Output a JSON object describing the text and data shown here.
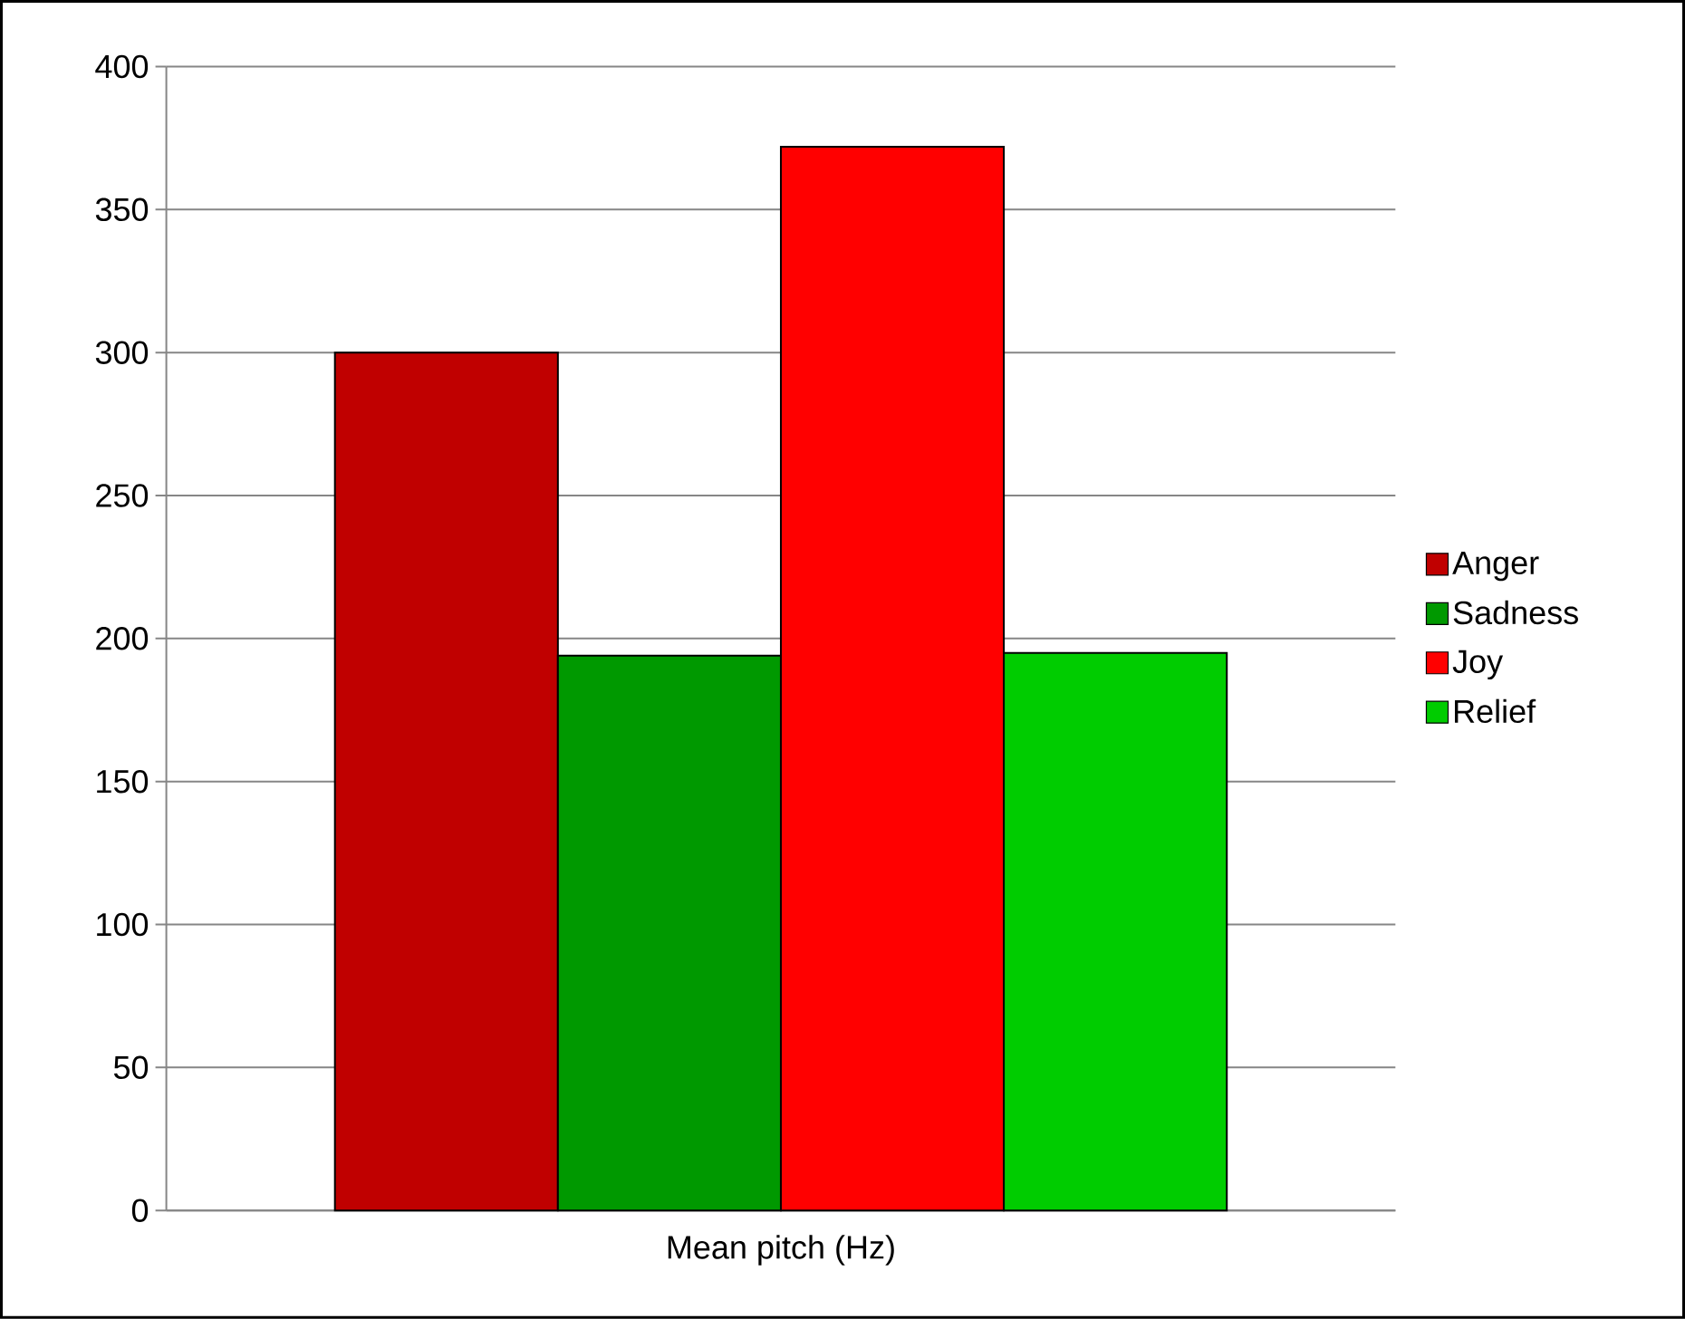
{
  "chart_data": {
    "type": "bar",
    "categories": [
      "Mean pitch (Hz)"
    ],
    "series": [
      {
        "name": "Anger",
        "color": "#c00000",
        "values": [
          300
        ]
      },
      {
        "name": "Sadness",
        "color": "#009900",
        "values": [
          194
        ]
      },
      {
        "name": "Joy",
        "color": "#ff0000",
        "values": [
          372
        ]
      },
      {
        "name": "Relief",
        "color": "#00cc00",
        "values": [
          195
        ]
      }
    ],
    "ylim": [
      0,
      400
    ],
    "yticks": [
      0,
      50,
      100,
      150,
      200,
      250,
      300,
      350,
      400
    ],
    "grid": "y",
    "legend": "right"
  }
}
